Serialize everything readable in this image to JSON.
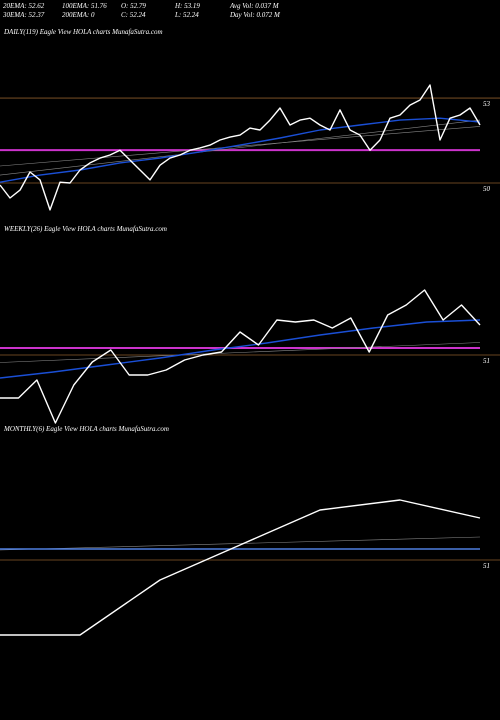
{
  "header": {
    "rows": [
      [
        "20EMA: 52.62",
        "100EMA: 51.76",
        "O: 52.79",
        "H: 53.19",
        "Avg Vol: 0.037  M"
      ],
      [
        "30EMA: 52.37",
        "200EMA: 0",
        "C: 52.24",
        "L: 52.24",
        "Day Vol: 0.072  M"
      ]
    ]
  },
  "chart_data": [
    {
      "type": "line",
      "title": "DAILY(119) Eagle  View  HOLA charts MunafaSutra.com",
      "ylim": [
        48.87,
        55.05
      ],
      "yticks": [
        53,
        50
      ],
      "reference_line": {
        "value": 51.16,
        "color": "#cc33cc"
      },
      "series": [
        {
          "color": "#888888",
          "values": [
            50.28,
            52.22
          ]
        },
        {
          "color": "#888888",
          "values": [
            50.6,
            52.0
          ]
        },
        {
          "color": "#1a4fd6",
          "values": [
            50.03,
            50.28,
            50.46,
            50.71,
            50.88,
            51.1,
            51.34,
            51.59,
            51.87,
            52.05,
            52.22,
            52.29,
            52.15
          ]
        },
        {
          "color": "#ffffff",
          "values": [
            49.93,
            49.47,
            49.75,
            50.39,
            50.11,
            49.05,
            50.03,
            50.0,
            50.46,
            50.71,
            50.88,
            50.99,
            51.16,
            50.81,
            50.46,
            50.11,
            50.63,
            50.88,
            50.99,
            51.16,
            51.24,
            51.34,
            51.52,
            51.62,
            51.69,
            51.94,
            51.87,
            52.22,
            52.65,
            52.05,
            52.22,
            52.29,
            52.05,
            51.87,
            52.58,
            51.87,
            51.69,
            51.16,
            51.52,
            52.29,
            52.4,
            52.75,
            52.93,
            53.46,
            51.52,
            52.29,
            52.4,
            52.65,
            52.05
          ]
        }
      ]
    },
    {
      "type": "line",
      "title": "WEEKLY(26) Eagle  View  HOLA charts MunafaSutra.com",
      "ylim": [
        48,
        55.8
      ],
      "yticks": [
        51
      ],
      "reference_line": {
        "value": 51.28,
        "color": "#cc33cc"
      },
      "series": [
        {
          "color": "#888888",
          "values": [
            50.7,
            51.5
          ]
        },
        {
          "color": "#1a4fd6",
          "values": [
            50.08,
            50.32,
            50.6,
            50.88,
            51.2,
            51.48,
            51.8,
            52.08,
            52.32,
            52.4
          ]
        },
        {
          "color": "#ffffff",
          "values": [
            49.28,
            49.28,
            50.0,
            48.28,
            49.8,
            50.72,
            51.2,
            50.2,
            50.2,
            50.4,
            50.8,
            51.0,
            51.12,
            51.92,
            51.4,
            52.4,
            52.32,
            52.4,
            52.08,
            52.48,
            51.12,
            52.6,
            53.0,
            53.6,
            52.4,
            53.0,
            52.2
          ]
        }
      ]
    },
    {
      "type": "line",
      "title": "MONTHLY(6) Eagle  View  HOLA charts MunafaSutra.com",
      "ylim": [
        45.4,
        55.8
      ],
      "yticks": [
        51
      ],
      "series": [
        {
          "color": "#888888",
          "values": [
            51.4,
            51.92
          ]
        },
        {
          "color": "#4f7fe0",
          "values": [
            51.44,
            51.44
          ]
        },
        {
          "color": "#ffffff",
          "values": [
            48.0,
            48.0,
            50.2,
            51.6,
            53.0,
            53.4,
            52.68
          ]
        }
      ]
    }
  ]
}
